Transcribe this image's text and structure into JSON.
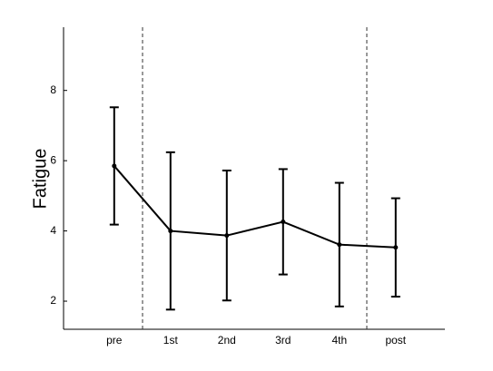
{
  "chart_data": {
    "type": "line",
    "y_label": "Fatigue",
    "categories": [
      "pre",
      "1st",
      "2nd",
      "3rd",
      "4th",
      "post"
    ],
    "values": [
      5.85,
      4.0,
      3.87,
      4.26,
      3.61,
      3.53
    ],
    "errors": [
      1.67,
      2.24,
      1.85,
      1.5,
      1.76,
      1.4
    ],
    "color": "#000000",
    "ylim": [
      1.2,
      9.8
    ],
    "yticks": [
      2,
      4,
      6,
      8
    ],
    "grid": false
  }
}
